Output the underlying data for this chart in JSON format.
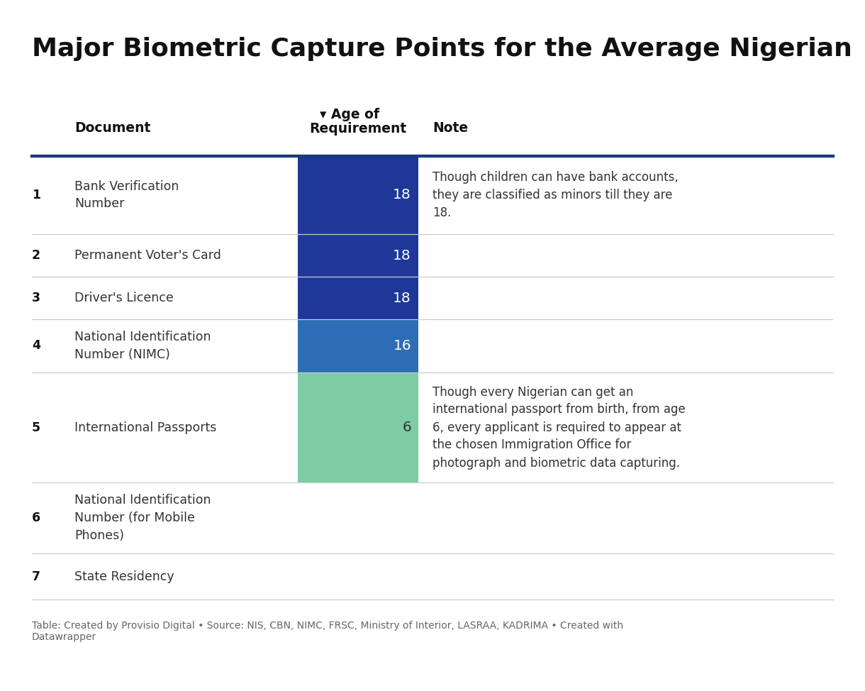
{
  "title": "Major Biometric Capture Points for the Average Nigerian",
  "title_fontsize": 26,
  "background_color": "#ffffff",
  "footer": "Table: Created by Provisio Digital • Source: NIS, CBN, NIMC, FRSC, Ministry of Interior, LASRAA, KADRIMA • Created with\nDatawrapper",
  "header_col2": "Document",
  "header_col3_line1": "▾ Age of",
  "header_col3_line2": "Requirement",
  "header_col4": "Note",
  "header_line_color": "#1a3a7a",
  "col_header_fontsize": 13.5,
  "rows": [
    {
      "num": "1",
      "document": "Bank Verification\nNumber",
      "age": "18",
      "age_bg": "#1e3799",
      "note": "Though children can have bank accounts,\nthey are classified as minors till they are\n18."
    },
    {
      "num": "2",
      "document": "Permanent Voter's Card",
      "age": "18",
      "age_bg": "#1e3799",
      "note": ""
    },
    {
      "num": "3",
      "document": "Driver's Licence",
      "age": "18",
      "age_bg": "#1e3799",
      "note": ""
    },
    {
      "num": "4",
      "document": "National Identification\nNumber (NIMC)",
      "age": "16",
      "age_bg": "#2d6db5",
      "note": ""
    },
    {
      "num": "5",
      "document": "International Passports",
      "age": "6",
      "age_bg": "#7ecba4",
      "note": "Though every Nigerian can get an\ninternational passport from birth, from age\n6, every applicant is required to appear at\nthe chosen Immigration Office for\nphotograph and biometric data capturing."
    },
    {
      "num": "6",
      "document": "National Identification\nNumber (for Mobile\nPhones)",
      "age": "",
      "age_bg": null,
      "note": ""
    },
    {
      "num": "7",
      "document": "State Residency",
      "age": "",
      "age_bg": null,
      "note": ""
    }
  ],
  "row_fontsize": 12.5,
  "note_fontsize": 12,
  "divider_color": "#cccccc",
  "num_color": "#111111",
  "doc_color": "#333333",
  "note_color": "#333333",
  "age_text_color": "#ffffff",
  "age_6_text_color": "#333333"
}
